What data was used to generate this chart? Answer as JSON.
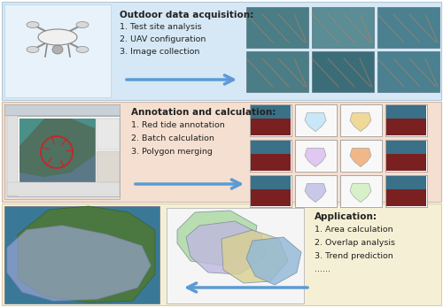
{
  "fig_width": 5.0,
  "fig_height": 3.47,
  "dpi": 100,
  "background_color": "#ffffff",
  "row1_bg": "#d6e8f5",
  "row2_bg": "#f5dfd0",
  "row3_bg": "#f5f0d5",
  "row1_title": "Outdoor data acquisition:",
  "row1_items": [
    "1. Test site analysis",
    "2. UAV configuration",
    "3. Image collection"
  ],
  "row2_title": "Annotation and calculation:",
  "row2_items": [
    "1. Red tide annotation",
    "2. Batch calculation",
    "3. Polygon merging"
  ],
  "row3_title": "Application:",
  "row3_items": [
    "1. Area calculation",
    "2. Overlap analysis",
    "3. Trend prediction",
    "......"
  ],
  "arrow_color": "#5b9bd5",
  "text_color": "#222222",
  "title_fontsize": 7.5,
  "item_fontsize": 6.8,
  "row1_aerial_colors_top": [
    "#5a8a90",
    "#5a8a90",
    "#5a8a90"
  ],
  "row1_aerial_colors_bot": [
    "#5a8a90",
    "#4a7a80",
    "#5a8a90"
  ],
  "grid2_colors": [
    [
      "#8b2020",
      "#b8d8e8",
      "#e8e0d0",
      "#8b2020"
    ],
    [
      "#8b2020",
      "#d8c0e8",
      "#e8c8a8",
      "#8b2020"
    ],
    [
      "#8b2020",
      "#b0b0d8",
      "#c0d8b0",
      "#8b2020"
    ]
  ],
  "grid2_overlay_colors": [
    [
      "",
      "#c8e8f8",
      "#f0d898",
      ""
    ],
    [
      "",
      "#e0c8f0",
      "#f0b888",
      ""
    ],
    [
      "",
      "#c8c8e8",
      "#d8f0c8",
      ""
    ]
  ]
}
